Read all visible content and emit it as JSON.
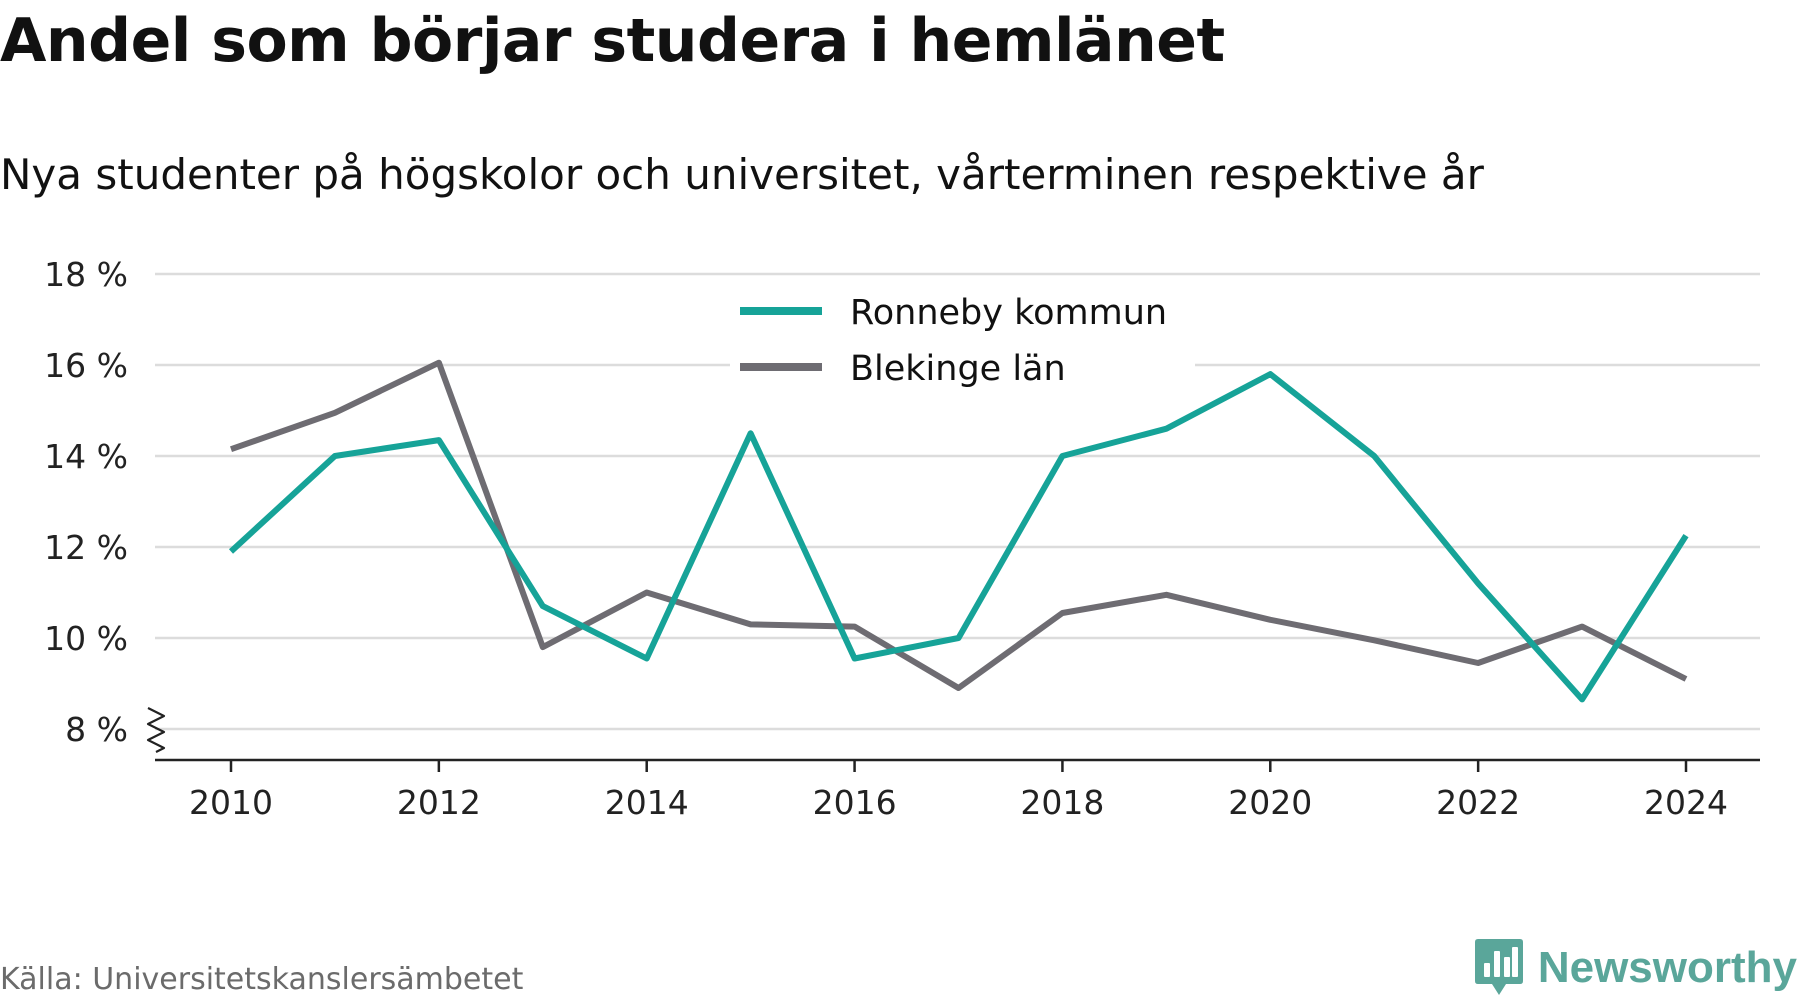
{
  "title": "Andel som börjar studera i hemlänet",
  "subtitle": "Nya studenter på högskolor och universitet, vårterminen respektive år",
  "source": "Källa: Universitetskanslersämbetet",
  "brand": {
    "name": "Newsworthy",
    "icon": "newsworthy-logo-icon",
    "color": "#5aa69a"
  },
  "chart_data": {
    "type": "line",
    "x": [
      2010,
      2011,
      2012,
      2013,
      2014,
      2015,
      2016,
      2017,
      2018,
      2019,
      2020,
      2021,
      2022,
      2023,
      2024
    ],
    "series": [
      {
        "name": "Ronneby kommun",
        "color": "#16a398",
        "values": [
          11.9,
          14.0,
          14.35,
          10.7,
          9.55,
          14.5,
          9.55,
          10.0,
          14.0,
          14.6,
          15.8,
          14.0,
          11.2,
          8.65,
          12.25
        ]
      },
      {
        "name": "Blekinge län",
        "color": "#6e6c72",
        "values": [
          14.15,
          14.95,
          16.05,
          9.8,
          11.0,
          10.3,
          10.25,
          8.9,
          10.55,
          10.95,
          10.4,
          9.95,
          9.45,
          10.25,
          9.1
        ]
      }
    ],
    "xticks": [
      2010,
      2012,
      2014,
      2016,
      2018,
      2020,
      2022,
      2024
    ],
    "yticks": [
      8,
      10,
      12,
      14,
      16,
      18
    ],
    "ytick_labels": [
      "8 %",
      "10 %",
      "12 %",
      "14 %",
      "16 %",
      "18 %"
    ],
    "ylim": [
      8,
      18
    ],
    "xlim": [
      2010,
      2024
    ],
    "axis_break": true,
    "grid": true,
    "legend_position": "top-center"
  }
}
